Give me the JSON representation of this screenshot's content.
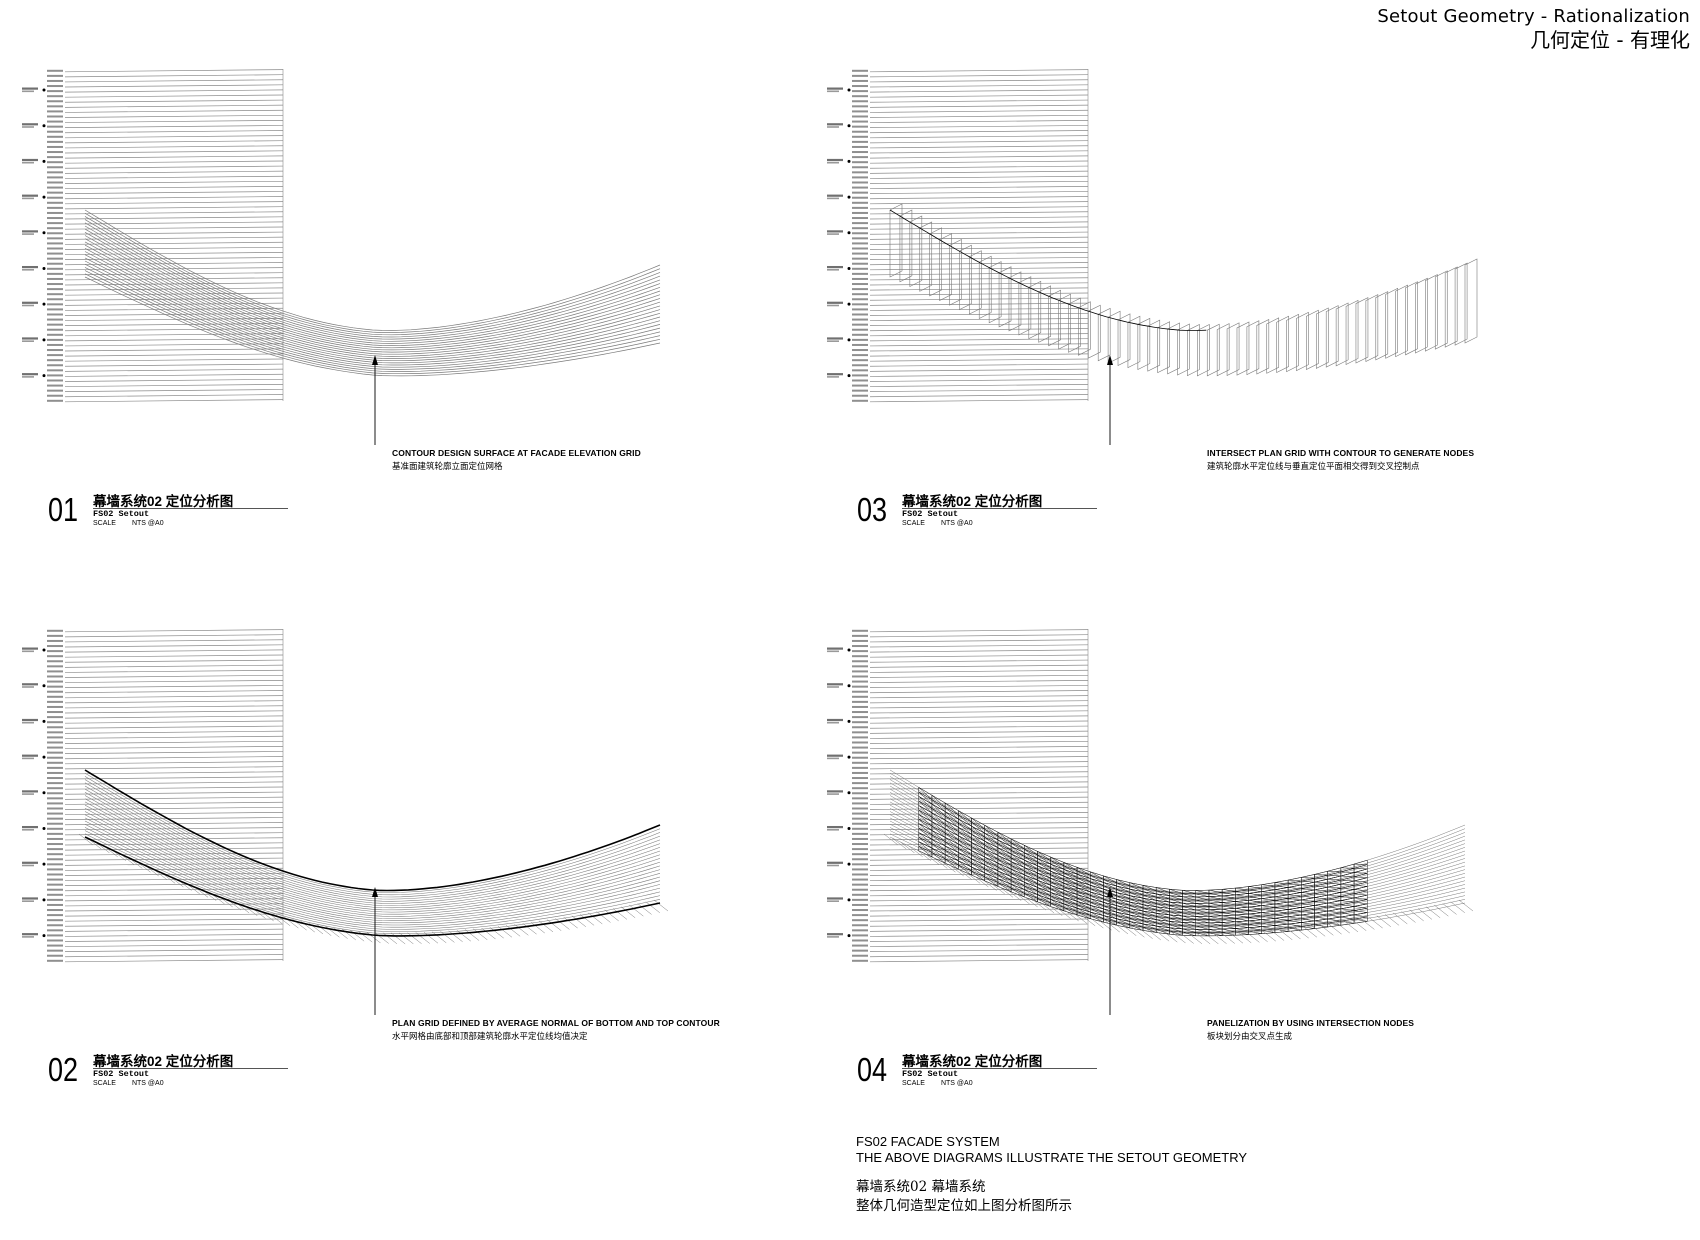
{
  "header": {
    "title_en": "Setout Geometry - Rationalization",
    "title_cn": "几何定位 - 有理化"
  },
  "panels": [
    {
      "number": "01",
      "title_cn": "幕墙系统02  定位分析图",
      "code": "FS02 Setout",
      "scale_label": "SCALE",
      "scale_value": "NTS @A0",
      "callout_en": "CONTOUR DESIGN SURFACE AT FACADE ELEVATION GRID",
      "callout_cn": "基准面建筑轮廓立面定位网格"
    },
    {
      "number": "03",
      "title_cn": "幕墙系统02  定位分析图",
      "code": "FS02 Setout",
      "scale_label": "SCALE",
      "scale_value": "NTS @A0",
      "callout_en": "INTERSECT PLAN GRID WITH CONTOUR TO GENERATE NODES",
      "callout_cn": "建筑轮廓水平定位线与垂直定位平面相交得到交叉控制点"
    },
    {
      "number": "02",
      "title_cn": "幕墙系统02  定位分析图",
      "code": "FS02 Setout",
      "scale_label": "SCALE",
      "scale_value": "NTS @A0",
      "callout_en": "PLAN GRID DEFINED BY AVERAGE NORMAL OF BOTTOM AND TOP CONTOUR",
      "callout_cn": "水平网格由底部和顶部建筑轮廓水平定位线均值决定"
    },
    {
      "number": "04",
      "title_cn": "幕墙系统02  定位分析图",
      "code": "FS02 Setout",
      "scale_label": "SCALE",
      "scale_value": "NTS @A0",
      "callout_en": "PANELIZATION BY USING INTERSECTION NODES",
      "callout_cn": "板块划分由交叉点生成"
    }
  ],
  "notes": {
    "line1": "FS02 FACADE SYSTEM",
    "line2": "THE ABOVE DIAGRAMS ILLUSTRATE THE SETOUT GEOMETRY",
    "line3": "幕墙系统02  幕墙系统",
    "line4": "整体几何造型定位如上图分析图所示"
  },
  "colors": {
    "ink": "#000000",
    "grid_line": "#8a8a8a",
    "surface_line": "#7a7a7a",
    "label": "#333333"
  }
}
